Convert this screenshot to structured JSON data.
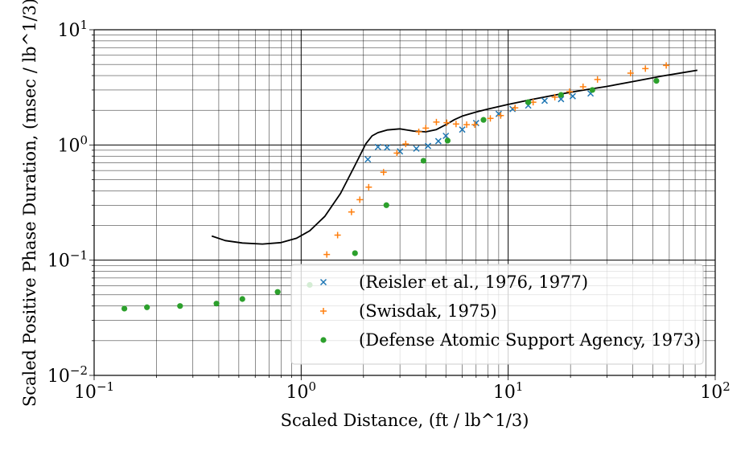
{
  "chart_data": {
    "type": "scatter",
    "xscale": "log",
    "yscale": "log",
    "xlim": [
      0.1,
      100
    ],
    "ylim": [
      0.01,
      10
    ],
    "grid": true,
    "xlabel": "Scaled Distance, (ft / lb^1/3)",
    "ylabel": "Scaled Positive Phase Duration, (msec / lb^1/3)",
    "xticks": [
      {
        "value": 0.1,
        "base": "10",
        "exp": "−1"
      },
      {
        "value": 1,
        "base": "10",
        "exp": "0"
      },
      {
        "value": 10,
        "base": "10",
        "exp": "1"
      },
      {
        "value": 100,
        "base": "10",
        "exp": "2"
      }
    ],
    "yticks": [
      {
        "value": 0.01,
        "base": "10",
        "exp": "−2"
      },
      {
        "value": 0.1,
        "base": "10",
        "exp": "−1"
      },
      {
        "value": 1,
        "base": "10",
        "exp": "0"
      },
      {
        "value": 10,
        "base": "10",
        "exp": "1"
      }
    ],
    "legend_position": "lower-right",
    "series": [
      {
        "kind": "line",
        "color": "#000000",
        "x": [
          0.37,
          0.43,
          0.52,
          0.65,
          0.8,
          0.95,
          1.1,
          1.3,
          1.55,
          1.8,
          2.05,
          2.2,
          2.35,
          2.6,
          3.0,
          3.5,
          4.0,
          4.5,
          5.0,
          5.5,
          6.0,
          7.0,
          8.0,
          10,
          13,
          17,
          22,
          30,
          40,
          55,
          70,
          82
        ],
        "y": [
          0.162,
          0.148,
          0.141,
          0.138,
          0.142,
          0.155,
          0.18,
          0.24,
          0.38,
          0.64,
          1.02,
          1.2,
          1.28,
          1.35,
          1.38,
          1.32,
          1.3,
          1.36,
          1.5,
          1.66,
          1.78,
          1.93,
          2.05,
          2.25,
          2.48,
          2.72,
          2.95,
          3.22,
          3.55,
          3.95,
          4.25,
          4.45
        ]
      },
      {
        "name": "(Reisler et al., 1976, 1977)",
        "kind": "scatter",
        "marker": "x",
        "color": "#1f77b4",
        "x": [
          2.1,
          2.35,
          2.6,
          3.0,
          3.6,
          4.1,
          4.6,
          5.0,
          6.0,
          7.0,
          9.0,
          10.5,
          12.5,
          15.0,
          18.0,
          20.5,
          25.0
        ],
        "y": [
          0.75,
          0.96,
          0.95,
          0.88,
          0.93,
          0.98,
          1.08,
          1.2,
          1.36,
          1.55,
          1.86,
          2.05,
          2.2,
          2.42,
          2.5,
          2.65,
          2.8
        ]
      },
      {
        "name": "(Swisdak, 1975)",
        "kind": "scatter",
        "marker": "+",
        "color": "#ff7f0e",
        "x": [
          1.33,
          1.5,
          1.75,
          1.92,
          2.12,
          2.5,
          2.9,
          3.2,
          3.7,
          4.0,
          4.5,
          5.05,
          5.6,
          6.3,
          6.9,
          8.2,
          9.2,
          10.8,
          13.2,
          16.8,
          19.8,
          23.0,
          27.0,
          39.0,
          46.0,
          58.0
        ],
        "y": [
          0.112,
          0.165,
          0.262,
          0.335,
          0.43,
          0.58,
          0.85,
          1.02,
          1.3,
          1.4,
          1.58,
          1.56,
          1.52,
          1.5,
          1.5,
          1.7,
          1.8,
          2.1,
          2.35,
          2.6,
          2.9,
          3.2,
          3.7,
          4.2,
          4.6,
          4.9
        ]
      },
      {
        "name": "(Defense Atomic Support Agency, 1973)",
        "kind": "scatter",
        "marker": "o",
        "color": "#2ca02c",
        "x": [
          0.14,
          0.18,
          0.26,
          0.39,
          0.52,
          0.77,
          1.1,
          1.82,
          2.58,
          3.9,
          5.1,
          7.6,
          12.5,
          18.0,
          25.5,
          52.0
        ],
        "y": [
          0.038,
          0.039,
          0.04,
          0.042,
          0.046,
          0.053,
          0.061,
          0.115,
          0.3,
          0.73,
          1.09,
          1.65,
          2.35,
          2.72,
          3.0,
          3.6
        ]
      }
    ]
  }
}
